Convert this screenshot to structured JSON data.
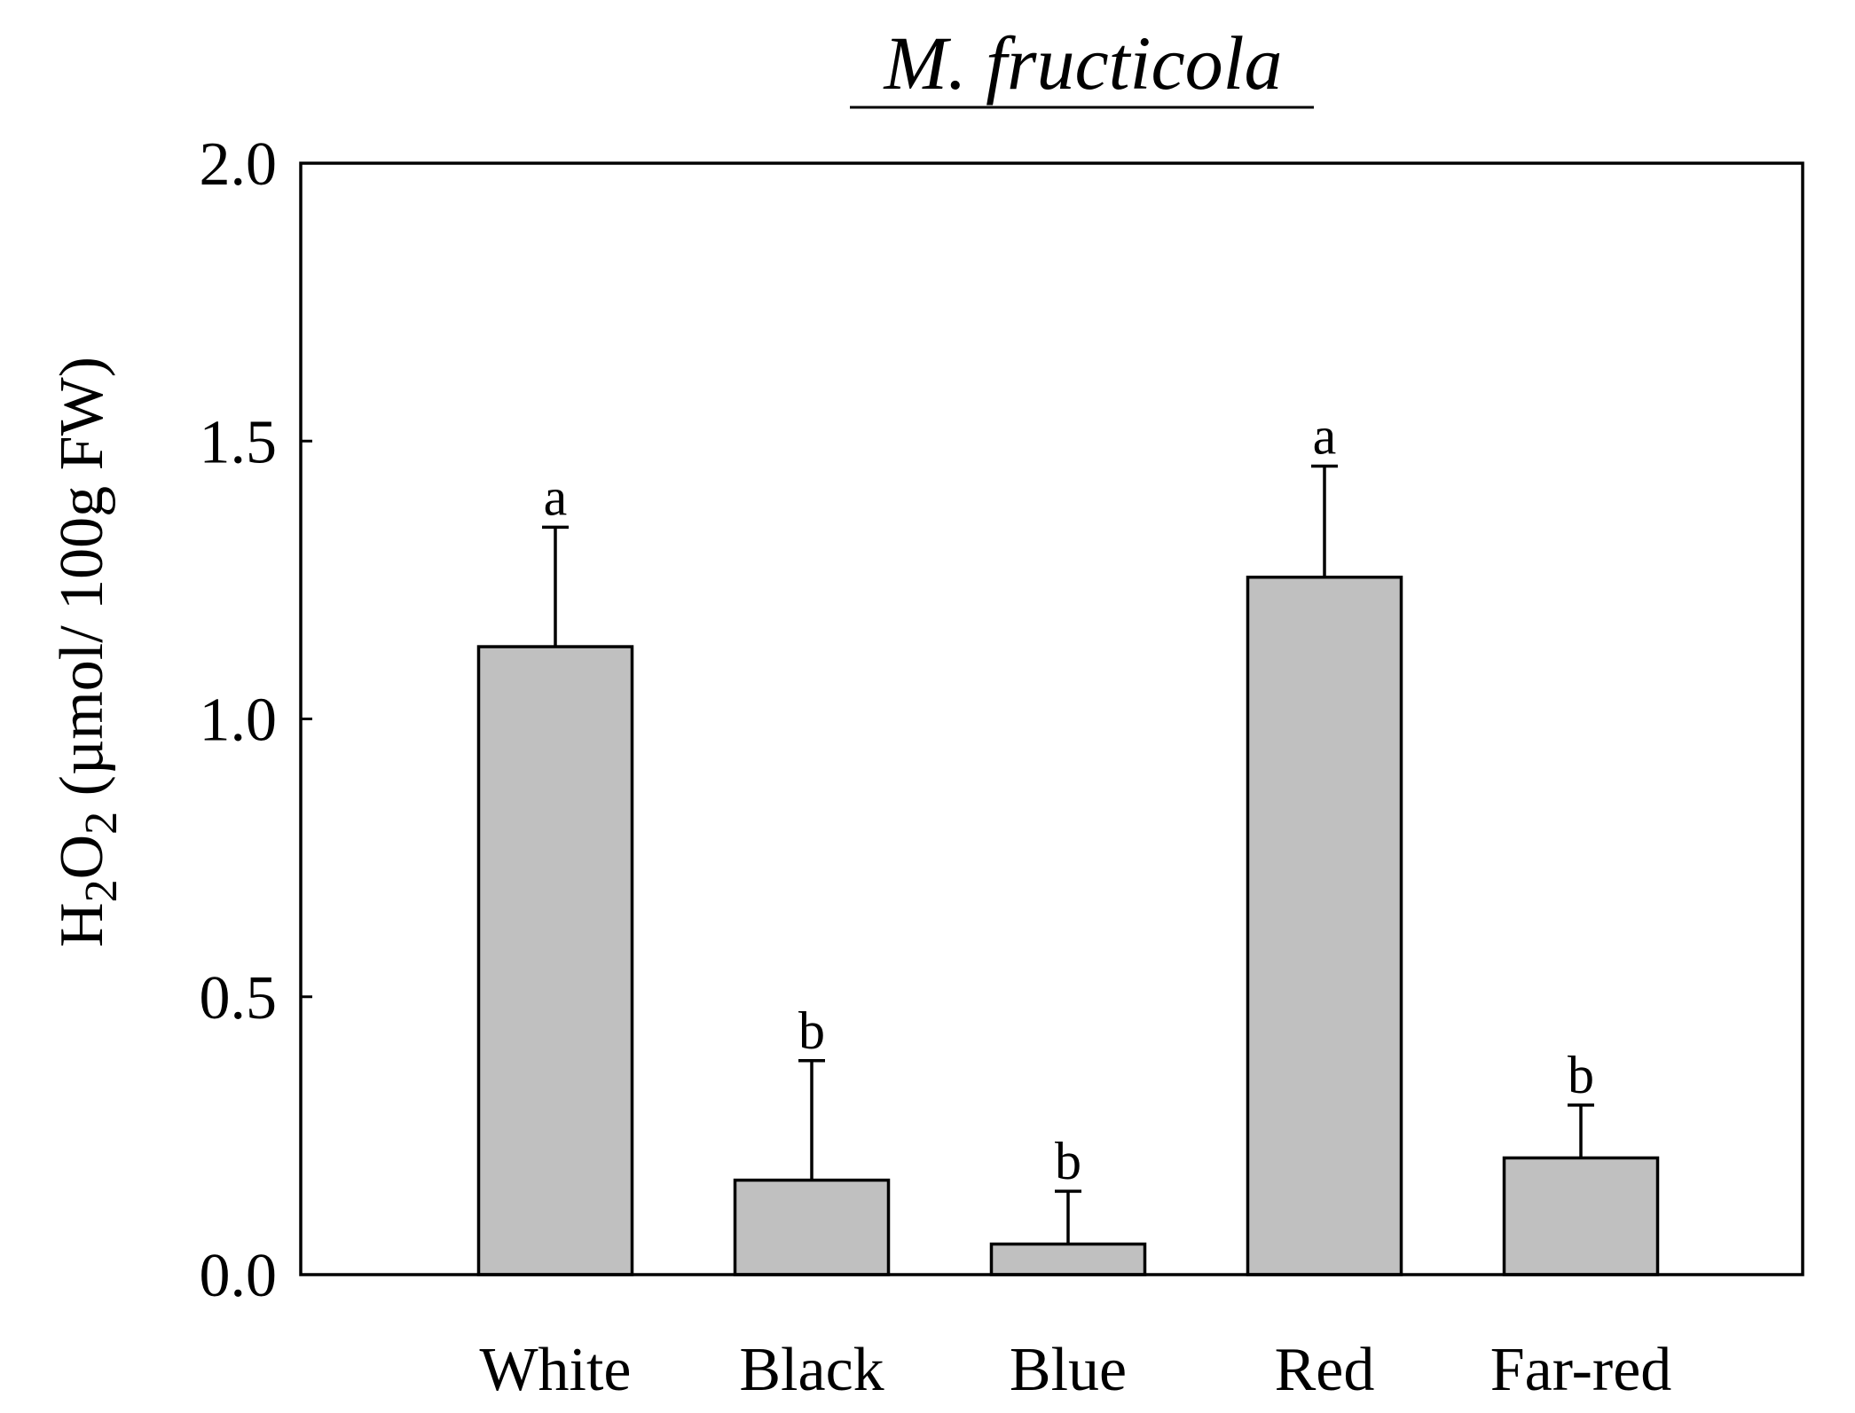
{
  "chart_data": {
    "type": "bar",
    "title": "M. fructicola",
    "ylabel": {
      "main": "H",
      "sub1": "2",
      "mid": "O",
      "sub2": "2",
      "rest": " (µmol/ 100g FW)"
    },
    "xlabel": "",
    "ylim": [
      0,
      2.0
    ],
    "yticks": [
      "0.0",
      "0.5",
      "1.0",
      "1.5",
      "2.0"
    ],
    "ytick_values": [
      0,
      0.5,
      1.0,
      1.5,
      2.0
    ],
    "categories": [
      "White",
      "Black",
      "Blue",
      "Red",
      "Far-red"
    ],
    "values": [
      1.13,
      0.17,
      0.055,
      1.255,
      0.21
    ],
    "errors": [
      0.215,
      0.215,
      0.095,
      0.2,
      0.095
    ],
    "significance": [
      "a",
      "b",
      "b",
      "a",
      "b"
    ],
    "bar_color": "#c0c0c0",
    "grid": false,
    "legend": "none"
  }
}
